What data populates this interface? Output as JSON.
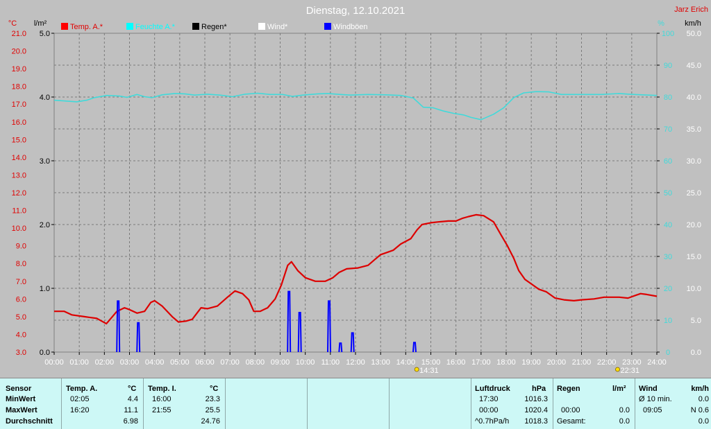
{
  "chart_data": {
    "type": "line",
    "title": "Dienstag, 12.10.2021",
    "author": "Jarz Erich",
    "left_axis_units": [
      "°C",
      "l/m²"
    ],
    "right_axis_units": [
      "%",
      "km/h"
    ],
    "x_ticks": [
      "00:00",
      "01:00",
      "02:00",
      "03:00",
      "04:00",
      "05:00",
      "06:00",
      "07:00",
      "08:00",
      "09:00",
      "10:00",
      "11:00",
      "12:00",
      "13:00",
      "14:00",
      "15:00",
      "16:00",
      "17:00",
      "18:00",
      "19:00",
      "20:00",
      "21:00",
      "22:00",
      "23:00",
      "24:00"
    ],
    "temp_ticks": [
      "21.0",
      "20.0",
      "19.0",
      "18.0",
      "17.0",
      "16.0",
      "15.0",
      "14.0",
      "13.0",
      "12.0",
      "11.0",
      "10.0",
      "9.0",
      "8.0",
      "7.0",
      "6.0",
      "5.0",
      "4.0",
      "3.0"
    ],
    "rain_ticks": [
      "5.0",
      "4.0",
      "3.0",
      "2.0",
      "1.0",
      "0.0"
    ],
    "humidity_ticks": [
      "100",
      "90",
      "80",
      "70",
      "60",
      "50",
      "40",
      "30",
      "20",
      "10",
      "0"
    ],
    "wind_ticks": [
      "50.0",
      "45.0",
      "40.0",
      "35.0",
      "30.0",
      "25.0",
      "20.0",
      "15.0",
      "10.0",
      "5.0",
      "0.0"
    ],
    "ylim_temp": [
      3,
      21
    ],
    "ylim_rain": [
      0,
      5
    ],
    "ylim_humidity": [
      0,
      100
    ],
    "ylim_wind": [
      0,
      50
    ],
    "xlim_hours": [
      0,
      24
    ],
    "grid": true,
    "legend": [
      {
        "label": "Temp. A.*",
        "color": "#ff0000"
      },
      {
        "label": "Feuchte A.*",
        "color": "#00ffff"
      },
      {
        "label": "Regen*",
        "color": "#000000"
      },
      {
        "label": "Wind*",
        "color": "#ffffff"
      },
      {
        "label": "Windböen",
        "color": "#0000ff"
      }
    ],
    "annotations": [
      {
        "hour": 14.52,
        "label": "14:31"
      },
      {
        "hour": 22.52,
        "label": "22:31"
      }
    ],
    "series": [
      {
        "name": "Temp. A.*",
        "axis": "temp",
        "color": "#dd0000",
        "points": [
          [
            0,
            5.3
          ],
          [
            0.4,
            5.3
          ],
          [
            0.7,
            5.1
          ],
          [
            1.2,
            5.0
          ],
          [
            1.7,
            4.9
          ],
          [
            2.08,
            4.6
          ],
          [
            2.5,
            5.3
          ],
          [
            2.8,
            5.5
          ],
          [
            3.0,
            5.4
          ],
          [
            3.3,
            5.2
          ],
          [
            3.6,
            5.3
          ],
          [
            3.85,
            5.8
          ],
          [
            4.0,
            5.9
          ],
          [
            4.3,
            5.6
          ],
          [
            4.7,
            5.0
          ],
          [
            4.95,
            4.7
          ],
          [
            5.25,
            4.75
          ],
          [
            5.5,
            4.85
          ],
          [
            5.85,
            5.5
          ],
          [
            6.1,
            5.45
          ],
          [
            6.5,
            5.6
          ],
          [
            6.9,
            6.1
          ],
          [
            7.2,
            6.45
          ],
          [
            7.5,
            6.3
          ],
          [
            7.75,
            5.95
          ],
          [
            7.95,
            5.3
          ],
          [
            8.2,
            5.3
          ],
          [
            8.5,
            5.5
          ],
          [
            8.8,
            6.0
          ],
          [
            9.05,
            6.8
          ],
          [
            9.3,
            7.9
          ],
          [
            9.45,
            8.1
          ],
          [
            9.7,
            7.6
          ],
          [
            10.0,
            7.2
          ],
          [
            10.4,
            7.0
          ],
          [
            10.8,
            7.0
          ],
          [
            11.1,
            7.2
          ],
          [
            11.35,
            7.5
          ],
          [
            11.65,
            7.7
          ],
          [
            12.1,
            7.75
          ],
          [
            12.5,
            7.9
          ],
          [
            12.75,
            8.2
          ],
          [
            13.0,
            8.5
          ],
          [
            13.2,
            8.6
          ],
          [
            13.5,
            8.75
          ],
          [
            13.8,
            9.1
          ],
          [
            14.2,
            9.4
          ],
          [
            14.45,
            9.9
          ],
          [
            14.65,
            10.2
          ],
          [
            15.0,
            10.3
          ],
          [
            15.3,
            10.35
          ],
          [
            15.7,
            10.4
          ],
          [
            16.0,
            10.4
          ],
          [
            16.25,
            10.55
          ],
          [
            16.5,
            10.65
          ],
          [
            16.8,
            10.75
          ],
          [
            17.1,
            10.7
          ],
          [
            17.5,
            10.35
          ],
          [
            17.8,
            9.6
          ],
          [
            18.05,
            9.0
          ],
          [
            18.3,
            8.3
          ],
          [
            18.5,
            7.6
          ],
          [
            18.75,
            7.1
          ],
          [
            19.0,
            6.85
          ],
          [
            19.3,
            6.55
          ],
          [
            19.6,
            6.4
          ],
          [
            19.95,
            6.05
          ],
          [
            20.3,
            5.95
          ],
          [
            20.7,
            5.9
          ],
          [
            21.0,
            5.95
          ],
          [
            21.5,
            6.0
          ],
          [
            21.9,
            6.1
          ],
          [
            22.5,
            6.1
          ],
          [
            22.85,
            6.05
          ],
          [
            23.15,
            6.2
          ],
          [
            23.35,
            6.3
          ],
          [
            23.6,
            6.25
          ],
          [
            24,
            6.15
          ]
        ]
      },
      {
        "name": "Feuchte A.*",
        "axis": "humidity",
        "color": "#40dada",
        "points": [
          [
            0,
            79
          ],
          [
            0.9,
            78.5
          ],
          [
            1.3,
            79
          ],
          [
            1.6,
            79.8
          ],
          [
            2.1,
            80.5
          ],
          [
            2.6,
            80.3
          ],
          [
            2.9,
            79.9
          ],
          [
            3.3,
            80.8
          ],
          [
            3.6,
            80.1
          ],
          [
            3.9,
            79.8
          ],
          [
            4.3,
            80.7
          ],
          [
            4.8,
            81.1
          ],
          [
            5.2,
            81.0
          ],
          [
            5.6,
            80.6
          ],
          [
            6.1,
            80.9
          ],
          [
            6.6,
            80.6
          ],
          [
            7.1,
            80.1
          ],
          [
            7.6,
            80.9
          ],
          [
            8.1,
            81.2
          ],
          [
            8.6,
            80.8
          ],
          [
            9.1,
            80.8
          ],
          [
            9.5,
            80.2
          ],
          [
            9.9,
            80.6
          ],
          [
            10.5,
            81.0
          ],
          [
            10.9,
            81.1
          ],
          [
            11.4,
            80.8
          ],
          [
            11.8,
            80.6
          ],
          [
            12.5,
            80.8
          ],
          [
            13.2,
            80.7
          ],
          [
            13.8,
            80.5
          ],
          [
            14.3,
            79.7
          ],
          [
            14.7,
            76.8
          ],
          [
            15.1,
            76.6
          ],
          [
            15.5,
            75.6
          ],
          [
            15.9,
            74.9
          ],
          [
            16.3,
            74.4
          ],
          [
            16.6,
            73.6
          ],
          [
            17.0,
            72.9
          ],
          [
            17.5,
            74.6
          ],
          [
            17.9,
            76.6
          ],
          [
            18.3,
            79.8
          ],
          [
            18.7,
            81.3
          ],
          [
            19.2,
            81.7
          ],
          [
            19.7,
            81.6
          ],
          [
            20.2,
            80.8
          ],
          [
            20.9,
            80.8
          ],
          [
            21.8,
            80.8
          ],
          [
            22.5,
            81.1
          ],
          [
            22.9,
            80.9
          ],
          [
            23.4,
            80.7
          ],
          [
            24,
            80.5
          ]
        ]
      },
      {
        "name": "Windböen",
        "axis": "wind",
        "color": "#0000ff",
        "bars": [
          [
            2.55,
            8.0
          ],
          [
            3.35,
            4.6
          ],
          [
            9.35,
            9.5
          ],
          [
            9.78,
            6.2
          ],
          [
            10.95,
            8.0
          ],
          [
            11.4,
            1.4
          ],
          [
            11.88,
            3.0
          ],
          [
            14.35,
            1.5
          ]
        ]
      }
    ]
  },
  "stats_panel": {
    "sensor": {
      "header": "Sensor",
      "rows": [
        "MinWert",
        "MaxWert",
        "Durchschnitt"
      ]
    },
    "temp_a": {
      "header": "Temp. A.",
      "unit": "°C",
      "times": [
        "02:05",
        "16:20",
        ""
      ],
      "values": [
        "4.4",
        "11.1",
        "6.98"
      ]
    },
    "temp_i": {
      "header": "Temp. I.",
      "unit": "°C",
      "times": [
        "16:00",
        "21:55",
        ""
      ],
      "values": [
        "23.3",
        "25.5",
        "24.76"
      ]
    },
    "luftdruck": {
      "header": "Luftdruck",
      "unit": "hPa",
      "times": [
        "17:30",
        "00:00",
        "^0.7hPa/h"
      ],
      "values": [
        "1016.3",
        "1020.4",
        "1018.3"
      ]
    },
    "regen": {
      "header": "Regen",
      "unit": "l/m²",
      "times": [
        "",
        "00:00",
        "Gesamt:"
      ],
      "values": [
        "",
        "0.0",
        "0.0"
      ]
    },
    "wind": {
      "header": "Wind",
      "unit": "km/h",
      "times": [
        "Ø 10 min.",
        "09:05",
        ""
      ],
      "values": [
        "0.0",
        "N 0.6",
        "0.0"
      ]
    }
  }
}
